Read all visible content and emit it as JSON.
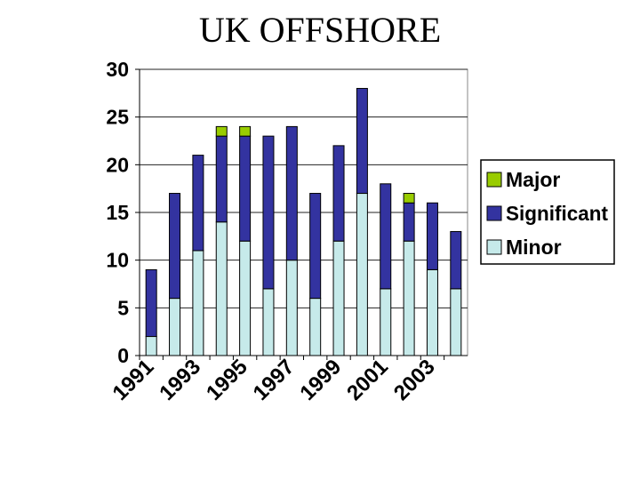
{
  "title": "UK OFFSHORE",
  "chart_data": {
    "type": "bar",
    "stacked": true,
    "title": "UK OFFSHORE",
    "categories": [
      "1991",
      "1992",
      "1993",
      "1994",
      "1995",
      "1996",
      "1997",
      "1998",
      "1999",
      "2000",
      "2001",
      "2002",
      "2003",
      "2004"
    ],
    "x_tick_labels": [
      "1991",
      "1993",
      "1995",
      "1997",
      "1999",
      "2001",
      "2003"
    ],
    "series": [
      {
        "name": "Minor",
        "color": "#c6eaea",
        "values": [
          2,
          6,
          11,
          14,
          12,
          7,
          10,
          6,
          12,
          17,
          7,
          12,
          9,
          7
        ]
      },
      {
        "name": "Significant",
        "color": "#3333a0",
        "values": [
          7,
          11,
          10,
          9,
          11,
          16,
          14,
          11,
          10,
          11,
          11,
          4,
          7,
          6
        ]
      },
      {
        "name": "Major",
        "color": "#99cc00",
        "values": [
          0,
          0,
          0,
          1,
          1,
          0,
          0,
          0,
          0,
          0,
          0,
          1,
          0,
          0
        ]
      }
    ],
    "legend_order": [
      "Major",
      "Significant",
      "Minor"
    ],
    "ylim": [
      0,
      30
    ],
    "yticks": [
      0,
      5,
      10,
      15,
      20,
      25,
      30
    ],
    "grid": true,
    "legend_position": "right",
    "xlabel": "",
    "ylabel": ""
  }
}
